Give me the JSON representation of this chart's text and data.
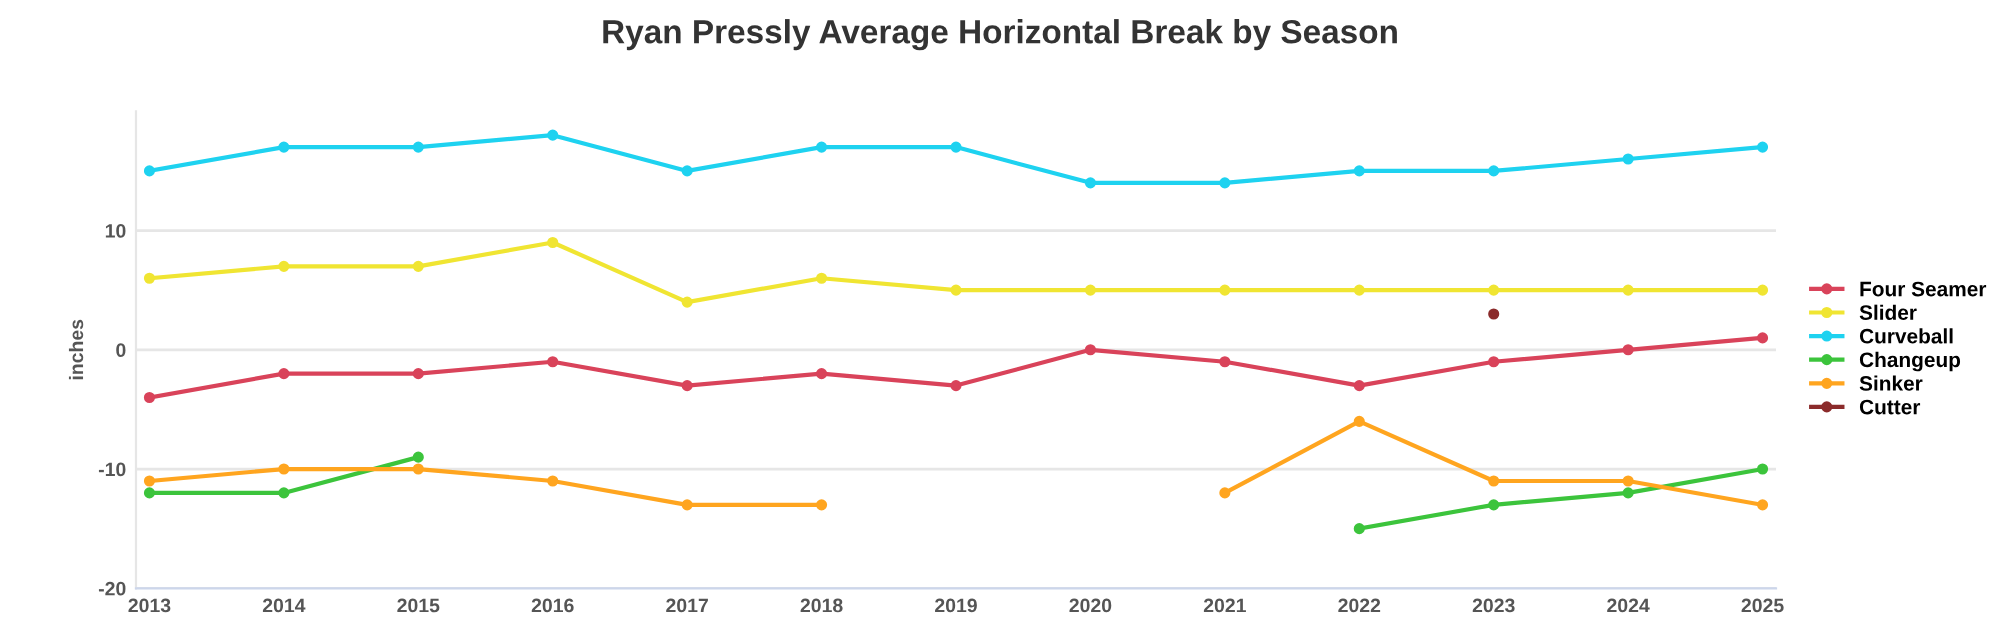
{
  "chart_data": {
    "type": "line",
    "title": "Ryan Pressly Average Horizontal Break by Season",
    "ylabel": "inches",
    "categories": [
      "2013",
      "2014",
      "2015",
      "2016",
      "2017",
      "2018",
      "2019",
      "2020",
      "2021",
      "2022",
      "2023",
      "2024",
      "2025"
    ],
    "series": [
      {
        "name": "Four Seamer",
        "color": "#d9435a",
        "values": [
          -4,
          -2,
          -2,
          -1,
          -3,
          -2,
          -3,
          0,
          -1,
          -3,
          -1,
          0,
          1
        ]
      },
      {
        "name": "Slider",
        "color": "#f0e532",
        "values": [
          6,
          7,
          7,
          9,
          4,
          6,
          5,
          5,
          5,
          5,
          5,
          5,
          5
        ]
      },
      {
        "name": "Curveball",
        "color": "#1ed2f0",
        "values": [
          15,
          17,
          17,
          18,
          15,
          17,
          17,
          14,
          14,
          15,
          15,
          16,
          17
        ]
      },
      {
        "name": "Changeup",
        "color": "#3cc43c",
        "values": [
          -12,
          -12,
          -9,
          null,
          null,
          null,
          null,
          null,
          null,
          -15,
          -13,
          -12,
          -10
        ]
      },
      {
        "name": "Sinker",
        "color": "#ffa51f",
        "values": [
          -11,
          -10,
          -10,
          -11,
          -13,
          -13,
          null,
          null,
          -12,
          -6,
          -11,
          -11,
          -13
        ]
      },
      {
        "name": "Cutter",
        "color": "#8b2b2b",
        "values": [
          null,
          null,
          null,
          null,
          null,
          null,
          null,
          null,
          null,
          null,
          3,
          null,
          null
        ]
      }
    ],
    "ylim": [
      -20,
      20
    ],
    "yticks": [
      -20,
      -10,
      0,
      10
    ],
    "grid": "y",
    "legend": "right",
    "marker": "circle",
    "line_style": "solid"
  }
}
